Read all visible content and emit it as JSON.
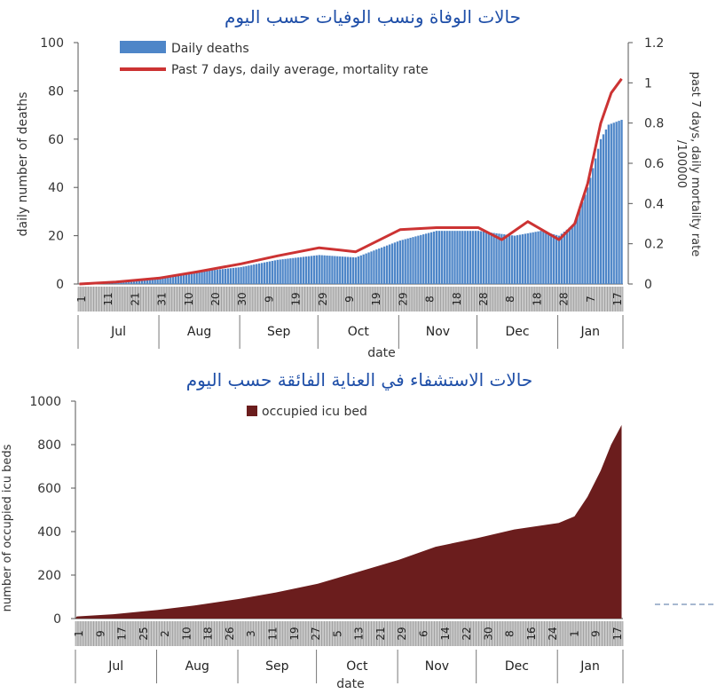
{
  "colors": {
    "deaths_bar": "#4e86c8",
    "mortality_line": "#cc3333",
    "icu_area": "#6b1d1d",
    "axis": "#555555",
    "tick_band": "#c8c8c8"
  },
  "chart_data": [
    {
      "type": "bar",
      "title": "حالات الوفاة ونسب الوفيات حسب اليوم",
      "xlabel": "date",
      "ylabel": "daily number of deaths",
      "y2label": "past 7 days, daily mortality rate /100000",
      "ylim": [
        0,
        100
      ],
      "y2lim": [
        0,
        1.2
      ],
      "yticks": [
        "0",
        "20",
        "40",
        "60",
        "80",
        "100"
      ],
      "y2ticks": [
        "0",
        "0.2",
        "0.4",
        "0.6",
        "0.8",
        "1",
        "1.2"
      ],
      "day_ticks": [
        "1",
        "11",
        "21",
        "31",
        "10",
        "20",
        "30",
        "9",
        "19",
        "29",
        "9",
        "19",
        "29",
        "8",
        "18",
        "28",
        "8",
        "18",
        "28",
        "7",
        "17"
      ],
      "months": [
        "Jul",
        "Aug",
        "Sep",
        "Oct",
        "Nov",
        "Dec",
        "Jan"
      ],
      "month_days": [
        31,
        31,
        30,
        31,
        30,
        31,
        25
      ],
      "legend": {
        "position": "top-left",
        "bar": "Daily deaths",
        "line": "Past 7 days, daily average, mortality rate"
      },
      "series": [
        {
          "name": "Daily deaths",
          "type": "bar",
          "axis": "left",
          "x": [
            "2020-07-01",
            "2020-07-15",
            "2020-08-01",
            "2020-08-15",
            "2020-09-01",
            "2020-09-15",
            "2020-10-01",
            "2020-10-15",
            "2020-11-01",
            "2020-11-15",
            "2020-12-01",
            "2020-12-15",
            "2020-12-25",
            "2021-01-01",
            "2021-01-07",
            "2021-01-12",
            "2021-01-17",
            "2021-01-20",
            "2021-01-25"
          ],
          "y": [
            0,
            1,
            3,
            5,
            7,
            10,
            12,
            11,
            18,
            22,
            22,
            20,
            22,
            20,
            25,
            40,
            60,
            66,
            68
          ]
        },
        {
          "name": "Past 7 days, daily average, mortality rate",
          "type": "line",
          "axis": "right",
          "x": [
            "2020-07-01",
            "2020-07-15",
            "2020-08-01",
            "2020-08-15",
            "2020-09-01",
            "2020-09-15",
            "2020-10-01",
            "2020-10-15",
            "2020-11-01",
            "2020-11-15",
            "2020-12-01",
            "2020-12-10",
            "2020-12-20",
            "2021-01-01",
            "2021-01-07",
            "2021-01-12",
            "2021-01-17",
            "2021-01-21",
            "2021-01-25"
          ],
          "y": [
            0,
            0.01,
            0.03,
            0.06,
            0.1,
            0.14,
            0.18,
            0.16,
            0.27,
            0.28,
            0.28,
            0.22,
            0.31,
            0.22,
            0.3,
            0.5,
            0.8,
            0.95,
            1.02
          ]
        }
      ]
    },
    {
      "type": "area",
      "title": "حالات الاستشفاء في العناية الفائقة حسب اليوم",
      "xlabel": "date",
      "ylabel": "number of occupied icu beds",
      "ylim": [
        0,
        1000
      ],
      "yticks": [
        "0",
        "200",
        "400",
        "600",
        "800",
        "1000"
      ],
      "day_ticks": [
        "1",
        "9",
        "17",
        "25",
        "2",
        "10",
        "18",
        "26",
        "3",
        "11",
        "19",
        "27",
        "5",
        "13",
        "21",
        "29",
        "6",
        "14",
        "22",
        "30",
        "8",
        "16",
        "24",
        "1",
        "9",
        "17"
      ],
      "months": [
        "Jul",
        "Aug",
        "Sep",
        "Oct",
        "Nov",
        "Dec",
        "Jan"
      ],
      "month_days": [
        31,
        31,
        30,
        31,
        30,
        31,
        25
      ],
      "legend": {
        "position": "top-center",
        "series": "occupied icu bed"
      },
      "series": [
        {
          "name": "occupied icu bed",
          "x": [
            "2020-07-01",
            "2020-07-15",
            "2020-08-01",
            "2020-08-15",
            "2020-09-01",
            "2020-09-15",
            "2020-10-01",
            "2020-10-15",
            "2020-11-01",
            "2020-11-15",
            "2020-12-01",
            "2020-12-15",
            "2021-01-01",
            "2021-01-07",
            "2021-01-12",
            "2021-01-17",
            "2021-01-21",
            "2021-01-25"
          ],
          "y": [
            10,
            20,
            40,
            60,
            90,
            120,
            160,
            210,
            270,
            330,
            370,
            410,
            440,
            470,
            560,
            680,
            800,
            890
          ]
        }
      ]
    }
  ]
}
